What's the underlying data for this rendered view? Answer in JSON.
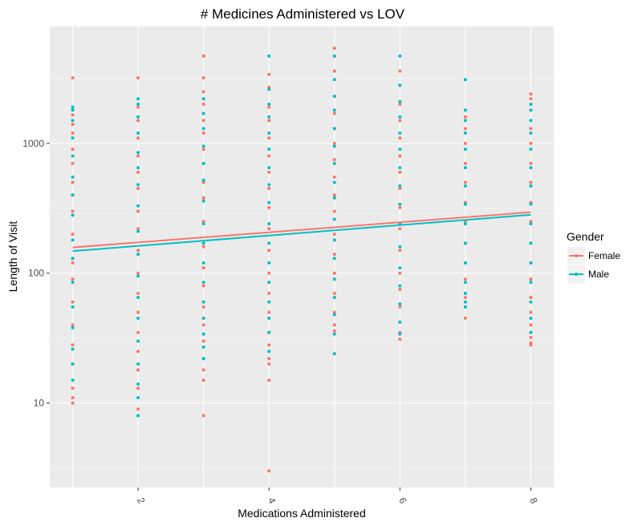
{
  "chart_data": {
    "type": "scatter",
    "title": "# Medicines Administered vs LOV",
    "xlabel": "Medications Administered",
    "ylabel": "Length of Visit",
    "xlim": [
      0.65,
      8.35
    ],
    "ylim_log10": [
      0.35,
      3.9
    ],
    "y_scale": "log10",
    "x_ticks": [
      2,
      4,
      6,
      8
    ],
    "x_tick_labels": [
      "2",
      "4",
      "6",
      "8"
    ],
    "y_ticks": [
      10,
      100,
      1000
    ],
    "y_tick_labels": [
      "10",
      "100",
      "1000"
    ],
    "grid": true,
    "legend": {
      "title": "Gender",
      "position": "right",
      "entries": [
        {
          "label": "Female",
          "color": "#F8766D"
        },
        {
          "label": "Male",
          "color": "#00BFC4"
        }
      ]
    },
    "series": [
      {
        "name": "Female",
        "color": "#F8766D",
        "trend": [
          [
            1,
            158
          ],
          [
            8,
            295
          ]
        ],
        "points": [
          [
            1,
            3200
          ],
          [
            1,
            1650
          ],
          [
            1,
            1400
          ],
          [
            1,
            1200
          ],
          [
            1,
            900
          ],
          [
            1,
            700
          ],
          [
            1,
            500
          ],
          [
            1,
            400
          ],
          [
            1,
            300
          ],
          [
            1,
            200
          ],
          [
            1,
            120
          ],
          [
            1,
            90
          ],
          [
            1,
            60
          ],
          [
            1,
            40
          ],
          [
            1,
            28
          ],
          [
            1,
            20
          ],
          [
            1,
            13
          ],
          [
            1,
            11
          ],
          [
            1,
            10
          ],
          [
            2,
            3200
          ],
          [
            2,
            1900
          ],
          [
            2,
            1500
          ],
          [
            2,
            1100
          ],
          [
            2,
            800
          ],
          [
            2,
            600
          ],
          [
            2,
            450
          ],
          [
            2,
            300
          ],
          [
            2,
            220
          ],
          [
            2,
            150
          ],
          [
            2,
            100
          ],
          [
            2,
            70
          ],
          [
            2,
            50
          ],
          [
            2,
            35
          ],
          [
            2,
            25
          ],
          [
            2,
            18
          ],
          [
            2,
            13
          ],
          [
            2,
            9
          ],
          [
            3,
            4700
          ],
          [
            3,
            3200
          ],
          [
            3,
            2500
          ],
          [
            3,
            2000
          ],
          [
            3,
            1500
          ],
          [
            3,
            1200
          ],
          [
            3,
            900
          ],
          [
            3,
            700
          ],
          [
            3,
            500
          ],
          [
            3,
            380
          ],
          [
            3,
            250
          ],
          [
            3,
            160
          ],
          [
            3,
            110
          ],
          [
            3,
            80
          ],
          [
            3,
            55
          ],
          [
            3,
            40
          ],
          [
            3,
            30
          ],
          [
            3,
            22
          ],
          [
            3,
            18
          ],
          [
            3,
            15
          ],
          [
            3,
            8
          ],
          [
            4,
            3400
          ],
          [
            4,
            2700
          ],
          [
            4,
            1900
          ],
          [
            4,
            1500
          ],
          [
            4,
            1100
          ],
          [
            4,
            800
          ],
          [
            4,
            600
          ],
          [
            4,
            450
          ],
          [
            4,
            320
          ],
          [
            4,
            220
          ],
          [
            4,
            150
          ],
          [
            4,
            100
          ],
          [
            4,
            70
          ],
          [
            4,
            50
          ],
          [
            4,
            35
          ],
          [
            4,
            28
          ],
          [
            4,
            22
          ],
          [
            4,
            20
          ],
          [
            4,
            15
          ],
          [
            4,
            3
          ],
          [
            5,
            5400
          ],
          [
            5,
            4700
          ],
          [
            5,
            3600
          ],
          [
            5,
            2300
          ],
          [
            5,
            1700
          ],
          [
            5,
            1300
          ],
          [
            5,
            1000
          ],
          [
            5,
            750
          ],
          [
            5,
            550
          ],
          [
            5,
            400
          ],
          [
            5,
            300
          ],
          [
            5,
            200
          ],
          [
            5,
            140
          ],
          [
            5,
            100
          ],
          [
            5,
            70
          ],
          [
            5,
            50
          ],
          [
            5,
            40
          ],
          [
            5,
            36
          ],
          [
            6,
            3600
          ],
          [
            6,
            2800
          ],
          [
            6,
            2000
          ],
          [
            6,
            1500
          ],
          [
            6,
            1100
          ],
          [
            6,
            800
          ],
          [
            6,
            600
          ],
          [
            6,
            450
          ],
          [
            6,
            320
          ],
          [
            6,
            220
          ],
          [
            6,
            150
          ],
          [
            6,
            100
          ],
          [
            6,
            75
          ],
          [
            6,
            55
          ],
          [
            6,
            42
          ],
          [
            6,
            35
          ],
          [
            6,
            31
          ],
          [
            7,
            1600
          ],
          [
            7,
            1300
          ],
          [
            7,
            1000
          ],
          [
            7,
            700
          ],
          [
            7,
            500
          ],
          [
            7,
            350
          ],
          [
            7,
            250
          ],
          [
            7,
            170
          ],
          [
            7,
            120
          ],
          [
            7,
            90
          ],
          [
            7,
            65
          ],
          [
            7,
            55
          ],
          [
            7,
            45
          ],
          [
            8,
            2400
          ],
          [
            8,
            2200
          ],
          [
            8,
            1800
          ],
          [
            8,
            1300
          ],
          [
            8,
            1000
          ],
          [
            8,
            700
          ],
          [
            8,
            500
          ],
          [
            8,
            350
          ],
          [
            8,
            250
          ],
          [
            8,
            170
          ],
          [
            8,
            120
          ],
          [
            8,
            90
          ],
          [
            8,
            65
          ],
          [
            8,
            50
          ],
          [
            8,
            40
          ],
          [
            8,
            32
          ],
          [
            8,
            29
          ],
          [
            8,
            28
          ]
        ]
      },
      {
        "name": "Male",
        "color": "#00BFC4",
        "trend": [
          [
            1,
            148
          ],
          [
            8,
            282
          ]
        ],
        "points": [
          [
            1,
            1900
          ],
          [
            1,
            1800
          ],
          [
            1,
            1500
          ],
          [
            1,
            1100
          ],
          [
            1,
            800
          ],
          [
            1,
            550
          ],
          [
            1,
            400
          ],
          [
            1,
            280
          ],
          [
            1,
            180
          ],
          [
            1,
            130
          ],
          [
            1,
            85
          ],
          [
            1,
            55
          ],
          [
            1,
            38
          ],
          [
            1,
            26
          ],
          [
            1,
            20
          ],
          [
            1,
            15
          ],
          [
            2,
            2200
          ],
          [
            2,
            2000
          ],
          [
            2,
            1600
          ],
          [
            2,
            1200
          ],
          [
            2,
            850
          ],
          [
            2,
            650
          ],
          [
            2,
            480
          ],
          [
            2,
            330
          ],
          [
            2,
            210
          ],
          [
            2,
            140
          ],
          [
            2,
            95
          ],
          [
            2,
            65
          ],
          [
            2,
            45
          ],
          [
            2,
            30
          ],
          [
            2,
            20
          ],
          [
            2,
            14
          ],
          [
            2,
            11
          ],
          [
            2,
            8
          ],
          [
            3,
            2200
          ],
          [
            3,
            1700
          ],
          [
            3,
            1300
          ],
          [
            3,
            950
          ],
          [
            3,
            700
          ],
          [
            3,
            520
          ],
          [
            3,
            360
          ],
          [
            3,
            240
          ],
          [
            3,
            170
          ],
          [
            3,
            120
          ],
          [
            3,
            85
          ],
          [
            3,
            60
          ],
          [
            3,
            45
          ],
          [
            3,
            34
          ],
          [
            3,
            27
          ],
          [
            3,
            22
          ],
          [
            4,
            4700
          ],
          [
            4,
            2600
          ],
          [
            4,
            2000
          ],
          [
            4,
            1600
          ],
          [
            4,
            1200
          ],
          [
            4,
            900
          ],
          [
            4,
            650
          ],
          [
            4,
            480
          ],
          [
            4,
            350
          ],
          [
            4,
            240
          ],
          [
            4,
            170
          ],
          [
            4,
            120
          ],
          [
            4,
            85
          ],
          [
            4,
            60
          ],
          [
            4,
            45
          ],
          [
            4,
            35
          ],
          [
            4,
            25
          ],
          [
            5,
            4700
          ],
          [
            5,
            3100
          ],
          [
            5,
            2300
          ],
          [
            5,
            1800
          ],
          [
            5,
            1300
          ],
          [
            5,
            950
          ],
          [
            5,
            700
          ],
          [
            5,
            500
          ],
          [
            5,
            380
          ],
          [
            5,
            260
          ],
          [
            5,
            180
          ],
          [
            5,
            130
          ],
          [
            5,
            90
          ],
          [
            5,
            65
          ],
          [
            5,
            48
          ],
          [
            5,
            34
          ],
          [
            5,
            24
          ],
          [
            6,
            4700
          ],
          [
            6,
            2800
          ],
          [
            6,
            2100
          ],
          [
            6,
            1600
          ],
          [
            6,
            1200
          ],
          [
            6,
            900
          ],
          [
            6,
            650
          ],
          [
            6,
            470
          ],
          [
            6,
            340
          ],
          [
            6,
            240
          ],
          [
            6,
            160
          ],
          [
            6,
            110
          ],
          [
            6,
            80
          ],
          [
            6,
            58
          ],
          [
            6,
            42
          ],
          [
            6,
            34
          ],
          [
            7,
            3100
          ],
          [
            7,
            1800
          ],
          [
            7,
            1500
          ],
          [
            7,
            1200
          ],
          [
            7,
            900
          ],
          [
            7,
            650
          ],
          [
            7,
            470
          ],
          [
            7,
            340
          ],
          [
            7,
            240
          ],
          [
            7,
            170
          ],
          [
            7,
            120
          ],
          [
            7,
            85
          ],
          [
            7,
            70
          ],
          [
            7,
            60
          ],
          [
            7,
            55
          ],
          [
            8,
            2000
          ],
          [
            8,
            1800
          ],
          [
            8,
            1500
          ],
          [
            8,
            1200
          ],
          [
            8,
            900
          ],
          [
            8,
            650
          ],
          [
            8,
            470
          ],
          [
            8,
            340
          ],
          [
            8,
            240
          ],
          [
            8,
            170
          ],
          [
            8,
            120
          ],
          [
            8,
            85
          ],
          [
            8,
            60
          ],
          [
            8,
            45
          ],
          [
            8,
            35
          ]
        ]
      }
    ]
  }
}
